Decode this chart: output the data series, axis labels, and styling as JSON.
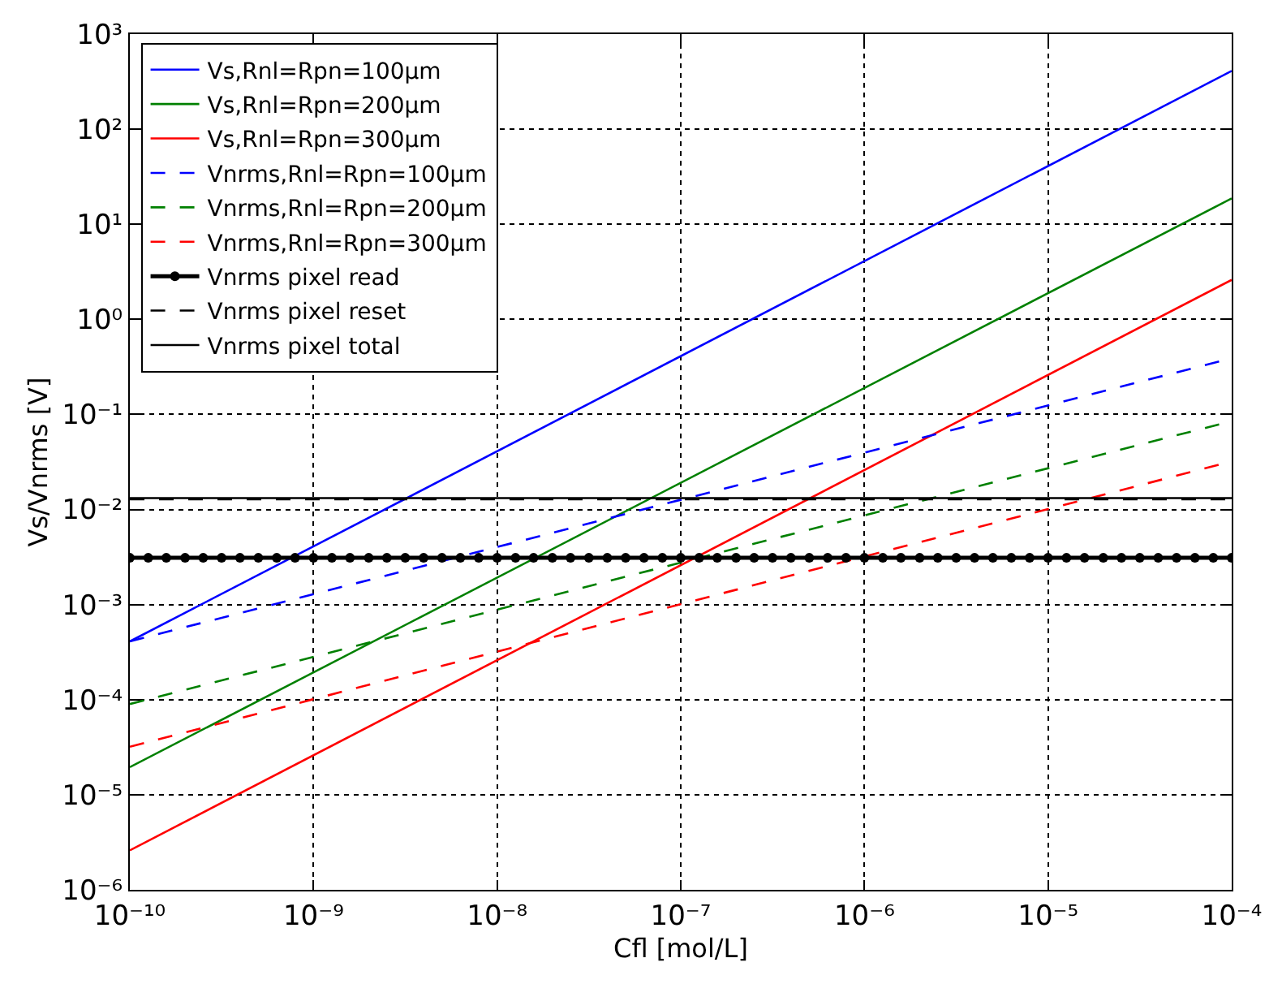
{
  "chart_data": {
    "type": "line",
    "xlabel": "Cfl [mol/L]",
    "ylabel": "Vs/Vnrms [V]",
    "log": "xy",
    "grid": true,
    "legend": "top left",
    "xlim": [
      1e-10,
      0.0001
    ],
    "ylim": [
      1e-06,
      1000
    ],
    "xticks": [
      {
        "value": 1e-10,
        "label": "10⁻¹⁰"
      },
      {
        "value": 1e-09,
        "label": "10⁻⁹"
      },
      {
        "value": 1e-08,
        "label": "10⁻⁸"
      },
      {
        "value": 1e-07,
        "label": "10⁻⁷"
      },
      {
        "value": 1e-06,
        "label": "10⁻⁶"
      },
      {
        "value": 1e-05,
        "label": "10⁻⁵"
      },
      {
        "value": 0.0001,
        "label": "10⁻⁴"
      }
    ],
    "yticks": [
      {
        "value": 1e-06,
        "label": "10⁻⁶"
      },
      {
        "value": 1e-05,
        "label": "10⁻⁵"
      },
      {
        "value": 0.0001,
        "label": "10⁻⁴"
      },
      {
        "value": 0.001,
        "label": "10⁻³"
      },
      {
        "value": 0.01,
        "label": "10⁻²"
      },
      {
        "value": 0.1,
        "label": "10⁻¹"
      },
      {
        "value": 1,
        "label": "10⁰"
      },
      {
        "value": 10,
        "label": "10¹"
      },
      {
        "value": 100,
        "label": "10²"
      },
      {
        "value": 1000,
        "label": "10³"
      }
    ],
    "series": [
      {
        "name": "Vs,Rnl=Rpn=100μm",
        "color": "#0000ff",
        "line_style": "solid",
        "marker": "none",
        "x": [
          1e-10,
          0.0001
        ],
        "values": [
          0.00041,
          410
        ]
      },
      {
        "name": "Vs,Rnl=Rpn=200μm",
        "color": "#008000",
        "line_style": "solid",
        "marker": "none",
        "x": [
          1e-10,
          0.0001
        ],
        "values": [
          1.95e-05,
          18.7
        ]
      },
      {
        "name": "Vs,Rnl=Rpn=300μm",
        "color": "#ff0000",
        "line_style": "solid",
        "marker": "none",
        "x": [
          1e-10,
          0.0001
        ],
        "values": [
          2.6e-06,
          2.6
        ]
      },
      {
        "name": "Vnrms,Rnl=Rpn=100μm",
        "color": "#0000ff",
        "line_style": "dashed",
        "marker": "none",
        "x": [
          1e-10,
          0.0001
        ],
        "values": [
          0.00041,
          0.39
        ]
      },
      {
        "name": "Vnrms,Rnl=Rpn=200μm",
        "color": "#008000",
        "line_style": "dashed",
        "marker": "none",
        "x": [
          1e-10,
          0.0001
        ],
        "values": [
          9e-05,
          0.085
        ]
      },
      {
        "name": "Vnrms,Rnl=Rpn=300μm",
        "color": "#ff0000",
        "line_style": "dashed",
        "marker": "none",
        "x": [
          1e-10,
          0.0001
        ],
        "values": [
          3.2e-05,
          0.032
        ]
      },
      {
        "name": "Vnrms pixel read",
        "color": "#000000",
        "line_style": "solid",
        "marker": "circle",
        "x": [
          1e-10,
          1.26e-10,
          1.58e-10,
          2e-10,
          2.51e-10,
          3.16e-10,
          3.98e-10,
          5.01e-10,
          6.31e-10,
          7.94e-10,
          1e-09,
          1.26e-09,
          1.58e-09,
          2e-09,
          2.51e-09,
          3.16e-09,
          3.98e-09,
          5.01e-09,
          6.31e-09,
          7.94e-09,
          1e-08,
          1.26e-08,
          1.58e-08,
          2e-08,
          2.51e-08,
          3.16e-08,
          3.98e-08,
          5.01e-08,
          6.31e-08,
          7.94e-08,
          1e-07,
          1.26e-07,
          1.58e-07,
          2e-07,
          2.51e-07,
          3.16e-07,
          3.98e-07,
          5.01e-07,
          6.31e-07,
          7.94e-07,
          1e-06,
          1.26e-06,
          1.58e-06,
          2e-06,
          2.51e-06,
          3.16e-06,
          3.98e-06,
          5.01e-06,
          6.31e-06,
          7.94e-06,
          1e-05,
          1.26e-05,
          1.58e-05,
          2e-05,
          2.51e-05,
          3.16e-05,
          3.98e-05,
          5.01e-05,
          6.31e-05,
          7.94e-05,
          0.0001
        ],
        "values": [
          0.0031,
          0.0031,
          0.0031,
          0.0031,
          0.0031,
          0.0031,
          0.0031,
          0.0031,
          0.0031,
          0.0031,
          0.0031,
          0.0031,
          0.0031,
          0.0031,
          0.0031,
          0.0031,
          0.0031,
          0.0031,
          0.0031,
          0.0031,
          0.0031,
          0.0031,
          0.0031,
          0.0031,
          0.0031,
          0.0031,
          0.0031,
          0.0031,
          0.0031,
          0.0031,
          0.0031,
          0.0031,
          0.0031,
          0.0031,
          0.0031,
          0.0031,
          0.0031,
          0.0031,
          0.0031,
          0.0031,
          0.0031,
          0.0031,
          0.0031,
          0.0031,
          0.0031,
          0.0031,
          0.0031,
          0.0031,
          0.0031,
          0.0031,
          0.0031,
          0.0031,
          0.0031,
          0.0031,
          0.0031,
          0.0031,
          0.0031,
          0.0031,
          0.0031,
          0.0031,
          0.0031
        ]
      },
      {
        "name": "Vnrms pixel reset",
        "color": "#000000",
        "line_style": "dashed",
        "marker": "none",
        "x": [
          1e-10,
          0.0001
        ],
        "values": [
          0.0128,
          0.0128
        ]
      },
      {
        "name": "Vnrms pixel total",
        "color": "#000000",
        "line_style": "solid",
        "marker": "none",
        "x": [
          1e-10,
          0.0001
        ],
        "values": [
          0.0132,
          0.0132
        ]
      }
    ]
  }
}
